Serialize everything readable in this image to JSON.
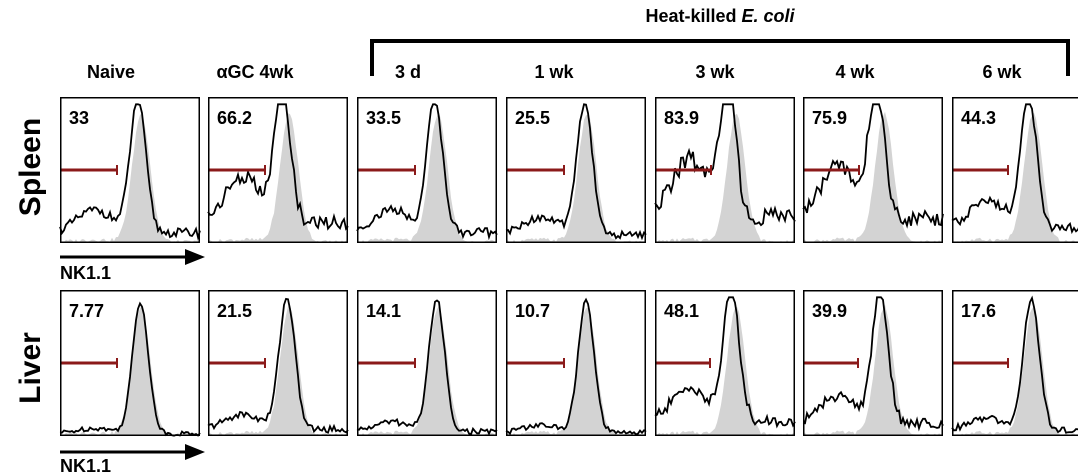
{
  "bracket_title_prefix": "Heat-killed ",
  "bracket_title_italic": "E. coli",
  "columns": [
    "Naive",
    "αGC 4wk",
    "3 d",
    "1 wk",
    "3 wk",
    "4 wk",
    "6 wk"
  ],
  "rows": [
    {
      "label": "Spleen",
      "values": [
        "33",
        "66.2",
        "33.5",
        "25.5",
        "83.9",
        "75.9",
        "44.3"
      ]
    },
    {
      "label": "Liver",
      "values": [
        "7.77",
        "21.5",
        "14.1",
        "10.7",
        "48.1",
        "39.9",
        "17.6"
      ]
    }
  ],
  "axis_label": "NK1.1",
  "colors": {
    "gate": "#8b1a1a",
    "filled": "#d3d3d3",
    "line": "#000000"
  }
}
